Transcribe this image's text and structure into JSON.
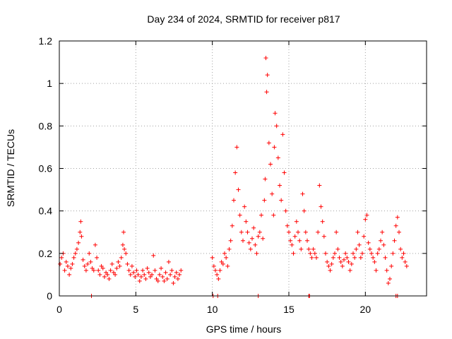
{
  "chart_data": {
    "type": "scatter",
    "title": "Day 234 of 2024, SRMTID for receiver p817",
    "xlabel": "GPS time / hours",
    "ylabel": "SRMTID / TECUs",
    "xlim": [
      0,
      24
    ],
    "ylim": [
      0,
      1.2
    ],
    "xticks": [
      0,
      5,
      10,
      15,
      20
    ],
    "xtick_labels": [
      "0",
      "5",
      "10",
      "15",
      "20"
    ],
    "yticks": [
      0,
      0.2,
      0.4,
      0.6,
      0.8,
      1,
      1.2
    ],
    "ytick_labels": [
      "0",
      "0.2",
      "0.4",
      "0.6",
      "0.8",
      "1",
      "1.2"
    ],
    "grid": true,
    "marker": "+",
    "series": [
      {
        "name": "SRMTID",
        "color": "#ff0000",
        "x": [
          0.05,
          0.15,
          0.25,
          0.35,
          0.45,
          0.55,
          0.65,
          0.75,
          0.85,
          0.95,
          1.05,
          1.15,
          1.25,
          1.35,
          1.4,
          1.45,
          1.55,
          1.65,
          1.75,
          1.85,
          1.95,
          2.05,
          2.15,
          2.25,
          2.35,
          2.45,
          2.55,
          2.65,
          2.75,
          2.85,
          2.95,
          3.05,
          3.15,
          3.25,
          3.35,
          3.45,
          3.55,
          3.65,
          3.75,
          3.85,
          3.95,
          4.05,
          4.15,
          4.2,
          4.25,
          4.35,
          4.45,
          4.55,
          4.65,
          4.75,
          4.85,
          4.95,
          5.05,
          5.15,
          5.25,
          5.35,
          5.45,
          5.55,
          5.65,
          5.75,
          5.85,
          5.95,
          6.05,
          6.15,
          6.25,
          6.35,
          6.45,
          6.55,
          6.65,
          6.75,
          6.85,
          6.95,
          7.05,
          7.15,
          7.25,
          7.35,
          7.45,
          7.55,
          7.65,
          7.75,
          7.85,
          7.95,
          2.1,
          10.0,
          10.1,
          10.2,
          10.3,
          10.4,
          10.5,
          10.6,
          10.7,
          10.8,
          10.9,
          11.0,
          11.1,
          11.2,
          11.3,
          11.4,
          11.5,
          11.6,
          11.7,
          11.8,
          11.9,
          12.0,
          12.1,
          12.2,
          12.3,
          12.4,
          12.5,
          12.6,
          12.7,
          12.8,
          12.9,
          13.0,
          13.1,
          13.2,
          13.3,
          13.4,
          13.45,
          13.5,
          13.55,
          13.6,
          13.7,
          13.8,
          13.9,
          14.0,
          14.05,
          14.1,
          14.2,
          14.3,
          14.4,
          14.5,
          14.6,
          14.7,
          14.8,
          14.9,
          15.0,
          15.1,
          15.2,
          15.3,
          15.4,
          15.5,
          15.6,
          15.7,
          15.8,
          15.9,
          16.0,
          16.1,
          16.2,
          16.3,
          16.4,
          16.5,
          16.6,
          16.7,
          16.8,
          16.9,
          17.0,
          17.1,
          17.2,
          17.3,
          17.4,
          17.5,
          17.6,
          17.7,
          17.8,
          17.9,
          18.0,
          18.1,
          18.2,
          18.3,
          18.4,
          18.5,
          18.6,
          18.7,
          18.8,
          18.9,
          19.0,
          19.1,
          19.2,
          19.3,
          19.4,
          19.5,
          19.6,
          19.7,
          19.8,
          19.9,
          20.0,
          20.1,
          20.2,
          20.3,
          20.4,
          20.5,
          20.6,
          20.7,
          20.8,
          20.9,
          21.0,
          21.1,
          21.2,
          21.3,
          21.4,
          21.5,
          21.6,
          21.7,
          21.8,
          21.9,
          22.0,
          22.1,
          22.2,
          22.3,
          22.4,
          22.5,
          22.6,
          22.7,
          10.05,
          10.35,
          13.0,
          16.3,
          16.35,
          22.0,
          22.1
        ],
        "y": [
          0.15,
          0.18,
          0.2,
          0.12,
          0.16,
          0.14,
          0.1,
          0.13,
          0.15,
          0.18,
          0.2,
          0.22,
          0.25,
          0.3,
          0.35,
          0.28,
          0.17,
          0.14,
          0.12,
          0.15,
          0.2,
          0.16,
          0.13,
          0.12,
          0.24,
          0.18,
          0.12,
          0.1,
          0.14,
          0.13,
          0.09,
          0.11,
          0.1,
          0.08,
          0.12,
          0.15,
          0.11,
          0.1,
          0.13,
          0.16,
          0.14,
          0.18,
          0.24,
          0.3,
          0.22,
          0.2,
          0.15,
          0.12,
          0.1,
          0.14,
          0.11,
          0.09,
          0.12,
          0.1,
          0.07,
          0.09,
          0.12,
          0.1,
          0.08,
          0.13,
          0.11,
          0.09,
          0.1,
          0.19,
          0.12,
          0.08,
          0.07,
          0.1,
          0.13,
          0.09,
          0.07,
          0.11,
          0.08,
          0.16,
          0.1,
          0.12,
          0.06,
          0.09,
          0.11,
          0.08,
          0.1,
          0.12,
          0.0,
          0.18,
          0.14,
          0.12,
          0.1,
          0.08,
          0.12,
          0.16,
          0.15,
          0.2,
          0.18,
          0.14,
          0.22,
          0.26,
          0.33,
          0.45,
          0.58,
          0.7,
          0.5,
          0.38,
          0.3,
          0.26,
          0.42,
          0.35,
          0.3,
          0.25,
          0.22,
          0.27,
          0.32,
          0.24,
          0.2,
          0.28,
          0.3,
          0.38,
          0.27,
          0.45,
          0.55,
          1.12,
          0.96,
          1.04,
          0.72,
          0.62,
          0.48,
          0.38,
          0.7,
          0.86,
          0.8,
          0.65,
          0.52,
          0.45,
          0.76,
          0.58,
          0.4,
          0.33,
          0.3,
          0.26,
          0.24,
          0.2,
          0.28,
          0.35,
          0.3,
          0.26,
          0.22,
          0.48,
          0.4,
          0.3,
          0.26,
          0.22,
          0.2,
          0.18,
          0.22,
          0.2,
          0.18,
          0.3,
          0.52,
          0.42,
          0.35,
          0.28,
          0.2,
          0.16,
          0.14,
          0.12,
          0.15,
          0.18,
          0.2,
          0.3,
          0.22,
          0.18,
          0.16,
          0.14,
          0.17,
          0.2,
          0.18,
          0.16,
          0.12,
          0.15,
          0.2,
          0.18,
          0.22,
          0.3,
          0.24,
          0.18,
          0.2,
          0.28,
          0.36,
          0.38,
          0.25,
          0.22,
          0.2,
          0.18,
          0.16,
          0.12,
          0.2,
          0.22,
          0.26,
          0.3,
          0.24,
          0.18,
          0.12,
          0.06,
          0.08,
          0.14,
          0.2,
          0.26,
          0.33,
          0.37,
          0.3,
          0.22,
          0.18,
          0.2,
          0.16,
          0.14,
          0.0,
          0.0,
          0.0,
          0.0,
          0.0,
          0.0,
          0.0
        ]
      }
    ]
  }
}
